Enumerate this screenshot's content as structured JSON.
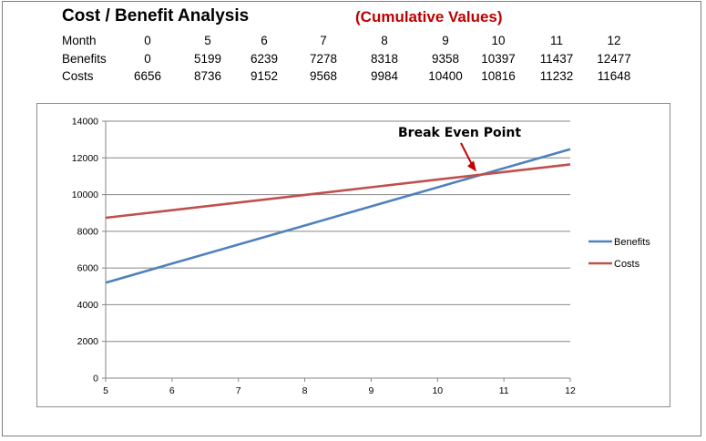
{
  "header": {
    "title": "Cost / Benefit Analysis",
    "subtitle": "(Cumulative Values)"
  },
  "table": {
    "rows": [
      {
        "label": "Month",
        "values": [
          "0",
          "5",
          "6",
          "7",
          "8",
          "9",
          "10",
          "11",
          "12"
        ]
      },
      {
        "label": "Benefits",
        "values": [
          "0",
          "5199",
          "6239",
          "7278",
          "8318",
          "9358",
          "10397",
          "11437",
          "12477"
        ]
      },
      {
        "label": "Costs",
        "values": [
          "6656",
          "8736",
          "9152",
          "9568",
          "9984",
          "10400",
          "10816",
          "11232",
          "11648"
        ]
      }
    ]
  },
  "colors": {
    "benefits": "#4f81bd",
    "costs": "#c0504d",
    "annotation_arrow": "#c00000",
    "subtitle": "#c00000"
  },
  "chart_data": {
    "type": "line",
    "x": [
      5,
      6,
      7,
      8,
      9,
      10,
      11,
      12
    ],
    "series": [
      {
        "name": "Benefits",
        "values": [
          5199,
          6239,
          7278,
          8318,
          9358,
          10397,
          11437,
          12477
        ]
      },
      {
        "name": "Costs",
        "values": [
          8736,
          9152,
          9568,
          9984,
          10400,
          10816,
          11232,
          11648
        ]
      }
    ],
    "xlim": [
      5,
      12
    ],
    "ylim": [
      0,
      14000
    ],
    "xticks": [
      5,
      6,
      7,
      8,
      9,
      10,
      11,
      12
    ],
    "yticks": [
      0,
      2000,
      4000,
      6000,
      8000,
      10000,
      12000,
      14000
    ],
    "grid": "horizontal",
    "legend": "right",
    "annotation": {
      "text": "Break Even Point",
      "x": 10.6,
      "y": 11100
    }
  }
}
